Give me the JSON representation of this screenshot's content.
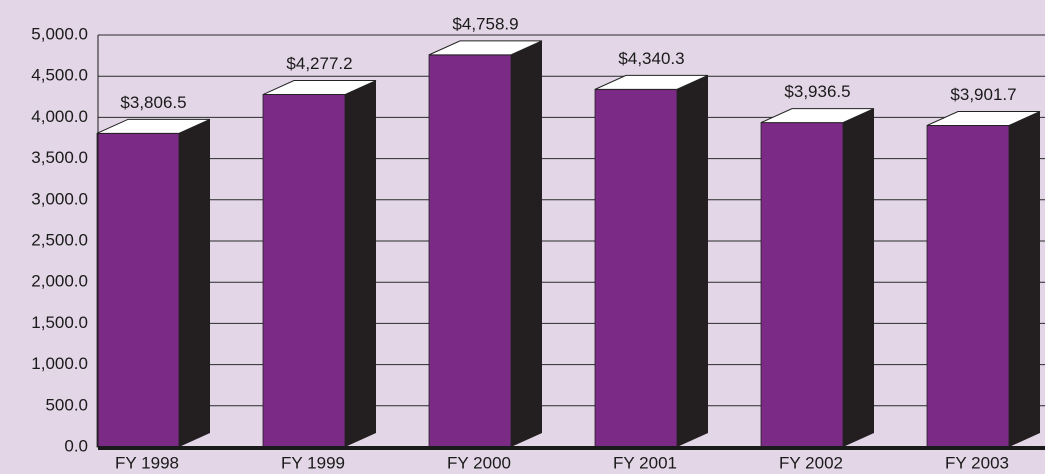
{
  "chart_data": {
    "type": "bar",
    "categories": [
      "FY 1998",
      "FY 1999",
      "FY 2000",
      "FY 2001",
      "FY 2002",
      "FY 2003"
    ],
    "values": [
      3806.5,
      4277.2,
      4758.9,
      4340.3,
      3936.5,
      3901.7
    ],
    "value_labels": [
      "$3,806.5",
      "$4,277.2",
      "$4,758.9",
      "$4,340.3",
      "$3,936.5",
      "$3,901.7"
    ],
    "color": "#7b2a85",
    "side_color": "#231f20",
    "top_color": "#ffffff",
    "background": "#e3d7e7",
    "ylim": [
      0,
      5000
    ],
    "yticks": [
      {
        "value": 0,
        "label": "0.0"
      },
      {
        "value": 500,
        "label": "500.0"
      },
      {
        "value": 1000,
        "label": "1,000.0"
      },
      {
        "value": 1500,
        "label": "1,500.0"
      },
      {
        "value": 2000,
        "label": "2,000.0"
      },
      {
        "value": 2500,
        "label": "2,500.0"
      },
      {
        "value": 3000,
        "label": "3,000.0"
      },
      {
        "value": 3500,
        "label": "3,500.0"
      },
      {
        "value": 4000,
        "label": "4,000.0"
      },
      {
        "value": 4500,
        "label": "4,500.0"
      },
      {
        "value": 5000,
        "label": "5,000.0"
      }
    ],
    "grid": true
  }
}
